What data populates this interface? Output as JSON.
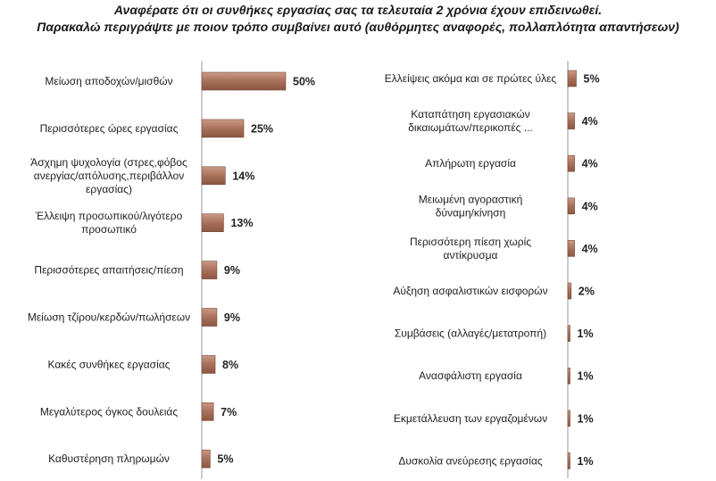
{
  "chart_data": {
    "type": "bar",
    "title_line1": "Αναφέρατε ότι οι συνθήκες εργασίας σας τα τελευταία 2 χρόνια έχουν  επιδεινωθεί.",
    "title_line2": "Παρακαλώ περιγράψτε με ποιον τρόπο συμβαίνει αυτό (αυθόρμητες αναφορές, πολλαπλότητα απαντήσεων)",
    "orientation": "horizontal",
    "bar_color": "#b07860",
    "panels": [
      {
        "items": [
          {
            "label": [
              "Μείωση αποδοχών/μισθών"
            ],
            "value": 50,
            "value_label": "50%"
          },
          {
            "label": [
              "Περισσότερες ώρες εργασίας"
            ],
            "value": 25,
            "value_label": "25%"
          },
          {
            "label": [
              "Άσχημη ψυχολογία (στρες,φόβος",
              "ανεργίας/απόλυσης,περιβάλλον",
              "εργασίας)"
            ],
            "value": 14,
            "value_label": "14%"
          },
          {
            "label": [
              "Έλλειψη προσωπικού/λιγότερο",
              "προσωπικό"
            ],
            "value": 13,
            "value_label": "13%"
          },
          {
            "label": [
              "Περισσότερες απαιτήσεις/πίεση"
            ],
            "value": 9,
            "value_label": "9%"
          },
          {
            "label": [
              "Μείωση τζίρου/κερδών/πωλήσεων"
            ],
            "value": 9,
            "value_label": "9%"
          },
          {
            "label": [
              "Κακές συνθήκες εργασίας"
            ],
            "value": 8,
            "value_label": "8%"
          },
          {
            "label": [
              "Μεγαλύτερος όγκος δουλειάς"
            ],
            "value": 7,
            "value_label": "7%"
          },
          {
            "label": [
              "Καθυστέρηση πληρωμών"
            ],
            "value": 5,
            "value_label": "5%"
          }
        ]
      },
      {
        "items": [
          {
            "label": [
              "Ελλείψεις ακόμα και σε πρώτες ύλες"
            ],
            "value": 5,
            "value_label": "5%"
          },
          {
            "label": [
              "Καταπάτηση εργασιακών",
              "δικαιωμάτων/περικοπές ..."
            ],
            "value": 4,
            "value_label": "4%"
          },
          {
            "label": [
              "Απλήρωτη εργασία"
            ],
            "value": 4,
            "value_label": "4%"
          },
          {
            "label": [
              "Μειωμένη αγοραστική",
              "δύναμη/κίνηση"
            ],
            "value": 4,
            "value_label": "4%"
          },
          {
            "label": [
              "Περισσότερη πίεση χωρίς",
              "αντίκρυσμα"
            ],
            "value": 4,
            "value_label": "4%"
          },
          {
            "label": [
              "Αύξηση ασφαλιστικών εισφορών"
            ],
            "value": 2,
            "value_label": "2%"
          },
          {
            "label": [
              "Συμβάσεις (αλλαγές/μετατροπή)"
            ],
            "value": 1,
            "value_label": "1%"
          },
          {
            "label": [
              "Ανασφάλιστη εργασία"
            ],
            "value": 1,
            "value_label": "1%"
          },
          {
            "label": [
              "Εκμετάλλευση των εργαζομένων"
            ],
            "value": 1,
            "value_label": "1%"
          },
          {
            "label": [
              "Δυσκολία ανεύρεσης εργασίας"
            ],
            "value": 1,
            "value_label": "1%"
          }
        ]
      }
    ]
  }
}
